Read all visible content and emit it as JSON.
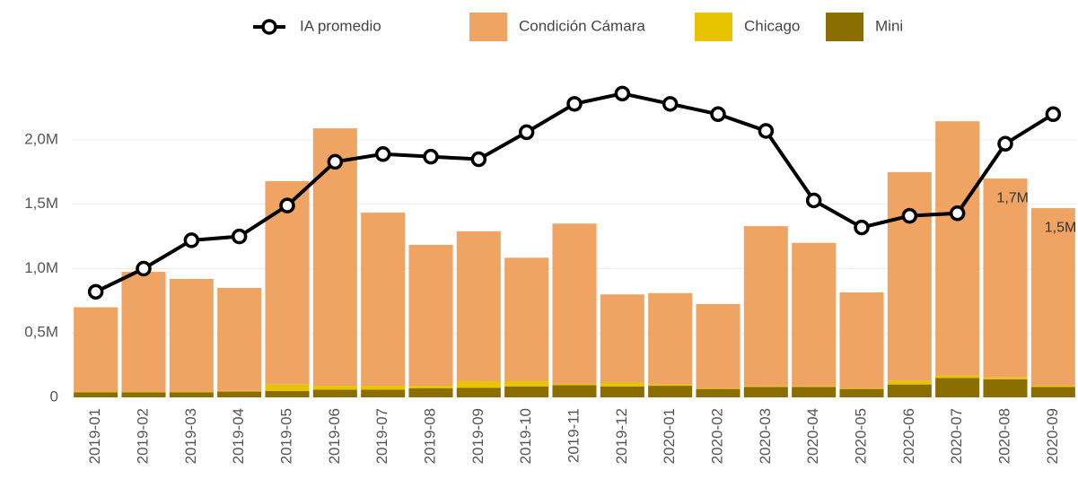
{
  "chart_data": {
    "type": "bar",
    "categories": [
      "2019-01",
      "2019-02",
      "2019-03",
      "2019-04",
      "2019-05",
      "2019-06",
      "2019-07",
      "2019-08",
      "2019-09",
      "2019-10",
      "2019-11",
      "2019-12",
      "2020-01",
      "2020-02",
      "2020-03",
      "2020-04",
      "2020-05",
      "2020-06",
      "2020-07",
      "2020-08",
      "2020-09"
    ],
    "stacked": true,
    "series": [
      {
        "name": "Mini",
        "color": "#8b6e00",
        "type": "bar",
        "values": [
          40000,
          40000,
          40000,
          45000,
          50000,
          60000,
          60000,
          70000,
          75000,
          85000,
          95000,
          85000,
          90000,
          65000,
          80000,
          80000,
          65000,
          100000,
          150000,
          140000,
          80000
        ]
      },
      {
        "name": "Chicago",
        "color": "#e8c300",
        "type": "bar",
        "values": [
          5000,
          5000,
          5000,
          5000,
          50000,
          30000,
          30000,
          20000,
          50000,
          40000,
          10000,
          30000,
          10000,
          5000,
          5000,
          5000,
          5000,
          30000,
          20000,
          15000,
          10000
        ]
      },
      {
        "name": "Condición Cámara",
        "color": "#f0a463",
        "type": "bar",
        "values": [
          655000,
          930000,
          875000,
          800000,
          1580000,
          2000000,
          1345000,
          1095000,
          1165000,
          960000,
          1245000,
          685000,
          710000,
          655000,
          1245000,
          1115000,
          745000,
          1620000,
          1975000,
          1545000,
          1380000
        ]
      },
      {
        "name": "IA promedio",
        "color": "#000000",
        "type": "line",
        "values": [
          820000,
          1000000,
          1220000,
          1250000,
          1490000,
          1830000,
          1890000,
          1870000,
          1850000,
          2060000,
          2280000,
          2360000,
          2280000,
          2200000,
          2070000,
          1530000,
          1320000,
          1410000,
          1430000,
          1970000,
          2200000
        ]
      }
    ],
    "annotations": [
      {
        "text": "1,7M",
        "value": 1700000,
        "category_index": 19
      },
      {
        "text": "1,5M",
        "value": 1470000,
        "category_index": 20
      }
    ],
    "ylim": [
      0,
      2400000
    ],
    "yticks": [
      0,
      {
        "value": 500000,
        "label": "0,5M"
      },
      {
        "value": 1000000,
        "label": "1,0M"
      },
      {
        "value": 1500000,
        "label": "1,5M"
      },
      {
        "value": 2000000,
        "label": "2,0M"
      }
    ],
    "grid": true,
    "legend": "top"
  }
}
